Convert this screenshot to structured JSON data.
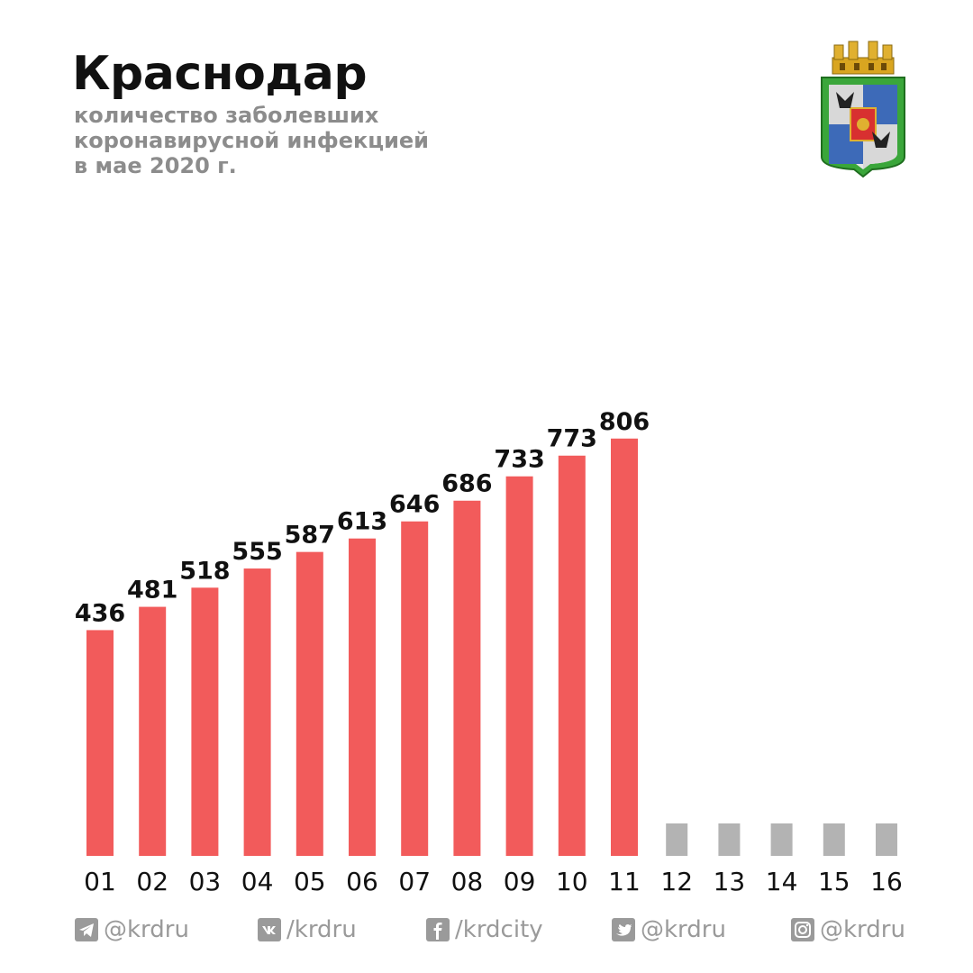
{
  "title": "Краснодар",
  "subtitle_lines": [
    "количество заболевших",
    "коронавирусной инфекцией",
    "в мае 2020 г."
  ],
  "colors": {
    "bar_reported": "#f25b5b",
    "bar_pending": "#b3b3b3",
    "text_dark": "#111111",
    "text_gray": "#8c8c8c",
    "footer_gray": "#9a9a9a"
  },
  "emblem": {
    "icon": "city-coat-of-arms-icon"
  },
  "chart_data": {
    "type": "bar",
    "title": "",
    "xlabel": "",
    "ylabel": "",
    "categories": [
      "01",
      "02",
      "03",
      "04",
      "05",
      "06",
      "07",
      "08",
      "09",
      "10",
      "11",
      "12",
      "13",
      "14",
      "15",
      "16"
    ],
    "values": [
      436,
      481,
      518,
      555,
      587,
      613,
      646,
      686,
      733,
      773,
      806,
      null,
      null,
      null,
      null,
      null
    ],
    "value_labels": [
      "436",
      "481",
      "518",
      "555",
      "587",
      "613",
      "646",
      "686",
      "733",
      "773",
      "806",
      "",
      "",
      "",
      "",
      ""
    ],
    "ylim": [
      0,
      870
    ],
    "grid": false,
    "legend": "none"
  },
  "footer": {
    "items": [
      {
        "icon": "telegram-icon",
        "handle": "@krdru"
      },
      {
        "icon": "vk-icon",
        "handle": "/krdru"
      },
      {
        "icon": "facebook-icon",
        "handle": "/krdcity"
      },
      {
        "icon": "twitter-icon",
        "handle": "@krdru"
      },
      {
        "icon": "instagram-icon",
        "handle": "@krdru"
      }
    ]
  }
}
